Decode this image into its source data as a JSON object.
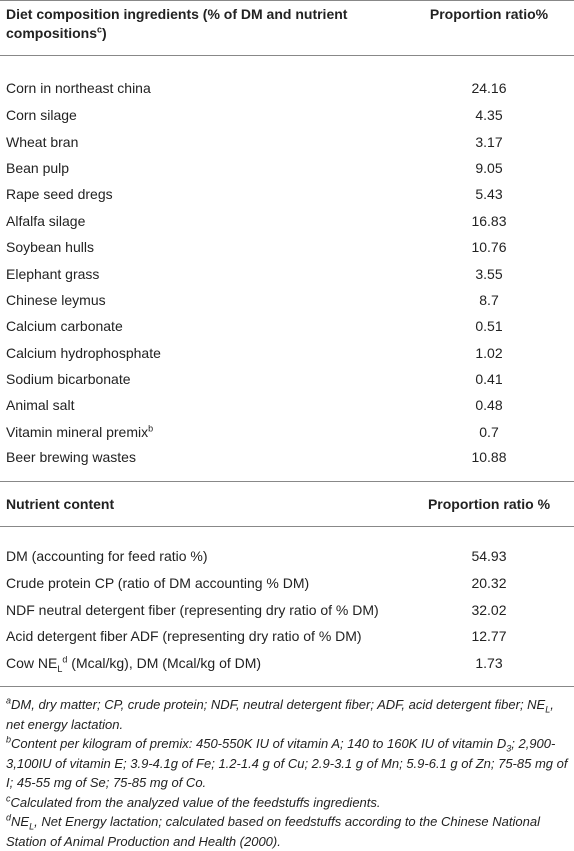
{
  "table1": {
    "header": [
      [
        "Diet composition ingredients (% of DM and nutrient compositions",
        {
          "sup": "c"
        },
        ")"
      ],
      "Proportion ratio%"
    ],
    "rows": [
      [
        "Corn in northeast china",
        24.16
      ],
      [
        "Corn silage",
        4.35
      ],
      [
        "Wheat bran",
        3.17
      ],
      [
        "Bean pulp",
        9.05
      ],
      [
        "Rape seed dregs",
        5.43
      ],
      [
        "Alfalfa silage",
        16.83
      ],
      [
        "Soybean hulls",
        10.76
      ],
      [
        "Elephant grass",
        3.55
      ],
      [
        "Chinese leymus",
        8.7
      ],
      [
        "Calcium carbonate",
        0.51
      ],
      [
        "Calcium hydrophosphate",
        1.02
      ],
      [
        "Sodium bicarbonate",
        0.41
      ],
      [
        "Animal salt",
        0.48
      ],
      [
        [
          "Vitamin mineral premix",
          {
            "sup": "b"
          }
        ],
        0.7
      ],
      [
        "Beer brewing wastes",
        10.88
      ]
    ]
  },
  "table2": {
    "header": [
      "Nutrient content",
      "Proportion ratio %"
    ],
    "rows": [
      [
        "DM (accounting for feed ratio %)",
        54.93
      ],
      [
        "Crude protein CP (ratio of DM accounting % DM)",
        20.32
      ],
      [
        "NDF neutral detergent fiber (representing dry ratio of % DM)",
        32.02
      ],
      [
        "Acid detergent fiber ADF (representing dry ratio of % DM)",
        12.77
      ],
      [
        [
          "Cow NE",
          {
            "sub": "L"
          },
          {
            "sup": "d"
          },
          " (Mcal/kg), DM (Mcal/kg of DM)"
        ],
        1.73
      ]
    ]
  },
  "footnotes": [
    [
      {
        "sup": "a"
      },
      "DM, dry matter; CP, crude protein; NDF, neutral detergent fiber; ADF, acid detergent fiber; NE",
      {
        "sub": "L"
      },
      ", net energy lactation."
    ],
    [
      {
        "sup": "b"
      },
      "Content per kilogram of premix: 450-550K IU of vitamin A; 140 to 160K IU of vitamin D",
      {
        "sub": "3"
      },
      "; 2,900-3,100IU of vitamin E; 3.9-4.1g of Fe; 1.2-1.4 g of Cu; 2.9-3.1 g of Mn; 5.9-6.1 g of Zn; 75-85 mg of I; 45-55 mg of Se; 75-85 mg of Co."
    ],
    [
      {
        "sup": "c"
      },
      "Calculated from the analyzed value of the feedstuffs ingredients."
    ],
    [
      {
        "sup": "d"
      },
      "NE",
      {
        "sub": "L"
      },
      ", Net Energy lactation; calculated based on feedstuffs according to the Chinese National Station of Animal Production and Health (2000)."
    ]
  ]
}
